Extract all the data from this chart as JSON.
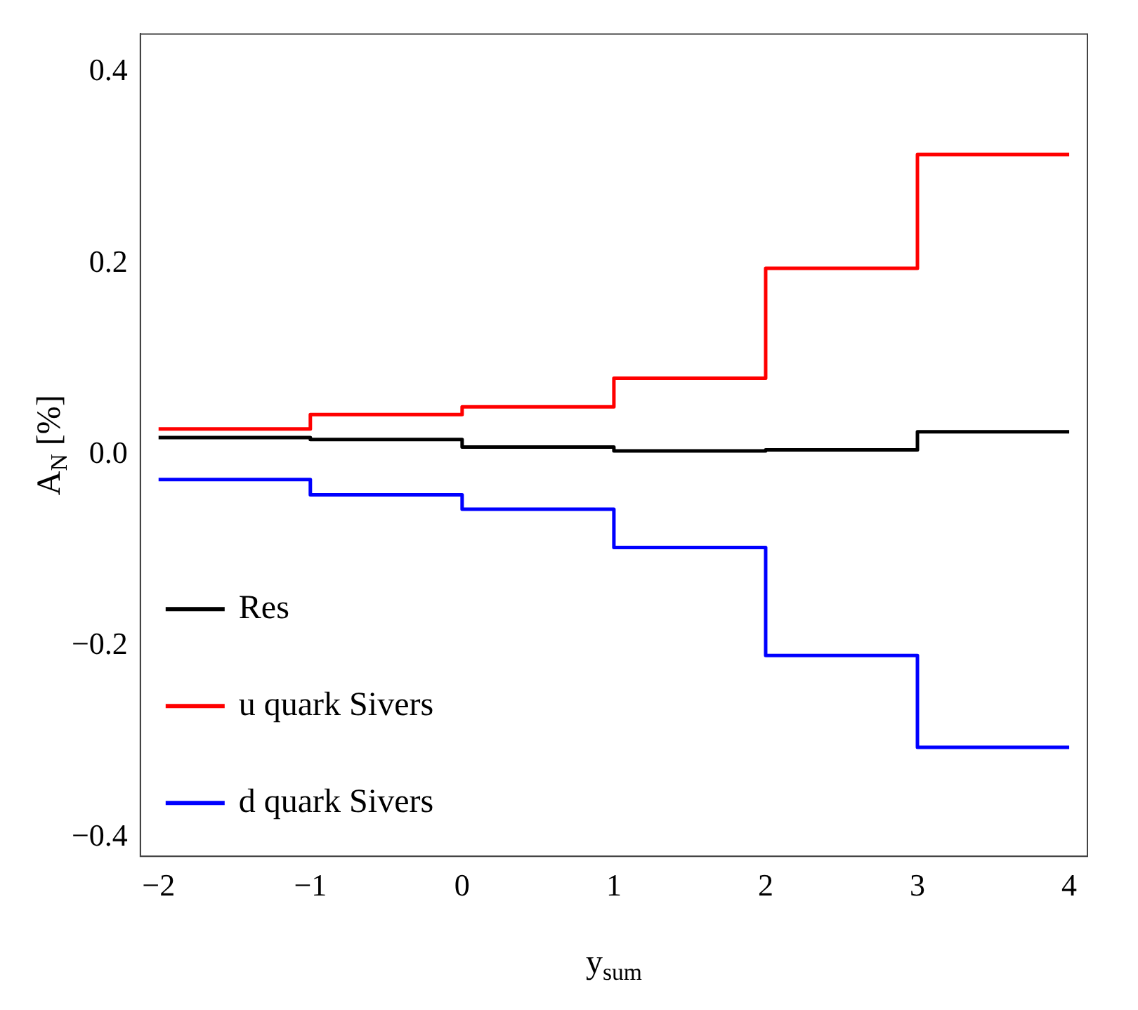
{
  "chart_data": {
    "type": "step",
    "xlabel": "y$_{sum}$",
    "ylabel": "A$_{N}$ [%]",
    "x": [
      -2,
      -1,
      0,
      1,
      2,
      3,
      4
    ],
    "series": [
      {
        "name": "Res",
        "color": "#000000",
        "values": [
          0.018,
          0.016,
          0.008,
          0.004,
          0.005,
          0.024,
          0.024
        ]
      },
      {
        "name": "u quark Sivers",
        "color": "#ff0000",
        "values": [
          0.027,
          0.042,
          0.05,
          0.08,
          0.195,
          0.314,
          0.314
        ]
      },
      {
        "name": "d quark Sivers",
        "color": "#0000ff",
        "values": [
          -0.026,
          -0.042,
          -0.057,
          -0.097,
          -0.21,
          -0.306,
          -0.306
        ]
      }
    ],
    "xlim": [
      -2.12,
      4.12
    ],
    "ylim": [
      -0.42,
      0.44
    ],
    "xticks": [
      {
        "value": -2,
        "label": "−2"
      },
      {
        "value": -1,
        "label": "−1"
      },
      0,
      1,
      2,
      3,
      4
    ],
    "yticks": [
      {
        "value": -0.4,
        "label": "−0.4"
      },
      {
        "value": -0.2,
        "label": "−0.2"
      },
      {
        "value": 0,
        "label": "0.0"
      },
      0.2,
      0.4
    ],
    "grid": false,
    "legend": "bottom left",
    "marker": "none",
    "line_style": "solid"
  }
}
